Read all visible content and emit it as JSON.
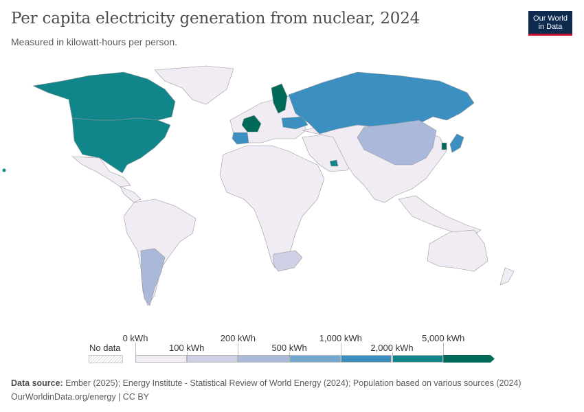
{
  "header": {
    "title": "Per capita electricity generation from nuclear, 2024",
    "subtitle": "Measured in kilowatt-hours per person."
  },
  "logo": {
    "line1": "Our World",
    "line2": "in Data"
  },
  "legend": {
    "no_data_label": "No data",
    "ticks": [
      "0 kWh",
      "100 kWh",
      "200 kWh",
      "500 kWh",
      "1,000 kWh",
      "2,000 kWh",
      "5,000 kWh"
    ],
    "colors": [
      "#f1ebf4",
      "#cfd0e6",
      "#aab8da",
      "#74a9cf",
      "#3b8fc1",
      "#11868a",
      "#006a58"
    ],
    "no_data_color": "#d9d9d9"
  },
  "footer": {
    "source_label": "Data source:",
    "source_text": "Ember (2025); Energy Institute - Statistical Review of World Energy (2024); Population based on various sources (2024)",
    "link_text": "OurWorldinData.org/energy | CC BY"
  },
  "map_colors": {
    "base": "#f1ebf4",
    "usa_canada": "#11868a",
    "russia": "#3b8fc1",
    "france_sweden": "#006a58",
    "china": "#aab8da",
    "argentina": "#aab8da",
    "south_africa": "#cfd0e6",
    "spain_ukraine": "#3b8fc1",
    "border": "#9a9a9a"
  }
}
